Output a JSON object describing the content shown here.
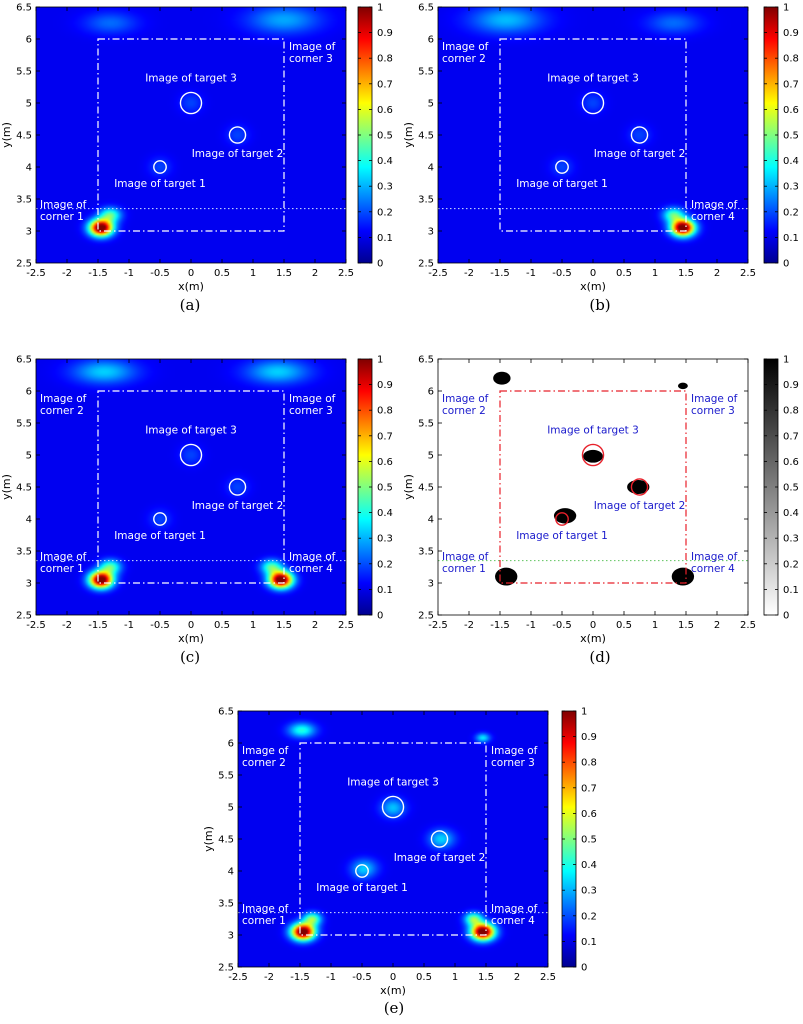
{
  "figure": {
    "panel_labels": [
      "(a)",
      "(b)",
      "(c)",
      "(d)",
      "(e)"
    ]
  },
  "chart_data": [
    {
      "type": "heatmap",
      "panel": "(a)",
      "colormap": "jet",
      "xlabel": "x(m)",
      "ylabel": "y(m)",
      "xlim": [
        -2.5,
        2.5
      ],
      "ylim": [
        2.5,
        6.5
      ],
      "xticks": [
        -2.5,
        -2,
        -1.5,
        -1,
        -0.5,
        0,
        0.5,
        1,
        1.5,
        2,
        2.5
      ],
      "yticks": [
        2.5,
        3,
        3.5,
        4,
        4.5,
        5,
        5.5,
        6,
        6.5
      ],
      "colorbar": {
        "min": 0,
        "max": 1,
        "ticks": [
          0,
          0.1,
          0.2,
          0.3,
          0.4,
          0.5,
          0.6,
          0.7,
          0.8,
          0.9,
          1
        ]
      },
      "room_rect": {
        "x": [
          -1.5,
          1.5
        ],
        "y": [
          3,
          6
        ]
      },
      "threshold_line_y": 3.35,
      "targets": [
        {
          "label": "Image of target 1",
          "x": -0.5,
          "y": 4.0,
          "r": 0.1
        },
        {
          "label": "Image of target 2",
          "x": 0.75,
          "y": 4.5,
          "r": 0.13
        },
        {
          "label": "Image of target 3",
          "x": 0.0,
          "y": 5.0,
          "r": 0.17
        }
      ],
      "corners": [
        {
          "label_line1": "Image of",
          "label_line2": "corner 1",
          "x": -1.5,
          "y": 3.2
        },
        {
          "label_line1": "Image of",
          "label_line2": "corner 3",
          "x": 1.5,
          "y": 5.8
        }
      ],
      "hotspots": [
        {
          "x": -1.45,
          "y": 3.05,
          "intensity": 1.0,
          "sx": 0.13,
          "sy": 0.09
        },
        {
          "x": -1.3,
          "y": 3.25,
          "intensity": 0.35,
          "sx": 0.12,
          "sy": 0.08
        },
        {
          "x": 1.5,
          "y": 6.3,
          "intensity": 0.18,
          "sx": 0.4,
          "sy": 0.15
        },
        {
          "x": -1.3,
          "y": 6.25,
          "intensity": 0.12,
          "sx": 0.3,
          "sy": 0.12
        }
      ]
    },
    {
      "type": "heatmap",
      "panel": "(b)",
      "colormap": "jet",
      "xlabel": "x(m)",
      "ylabel": "y(m)",
      "xlim": [
        -2.5,
        2.5
      ],
      "ylim": [
        2.5,
        6.5
      ],
      "xticks": [
        -2.5,
        -2,
        -1.5,
        -1,
        -0.5,
        0,
        0.5,
        1,
        1.5,
        2,
        2.5
      ],
      "yticks": [
        2.5,
        3,
        3.5,
        4,
        4.5,
        5,
        5.5,
        6,
        6.5
      ],
      "colorbar": {
        "min": 0,
        "max": 1,
        "ticks": [
          0,
          0.1,
          0.2,
          0.3,
          0.4,
          0.5,
          0.6,
          0.7,
          0.8,
          0.9,
          1
        ]
      },
      "room_rect": {
        "x": [
          -1.5,
          1.5
        ],
        "y": [
          3,
          6
        ]
      },
      "threshold_line_y": 3.35,
      "targets": [
        {
          "label": "Image of target 1",
          "x": -0.5,
          "y": 4.0,
          "r": 0.1
        },
        {
          "label": "Image of target 2",
          "x": 0.75,
          "y": 4.5,
          "r": 0.13
        },
        {
          "label": "Image of target 3",
          "x": 0.0,
          "y": 5.0,
          "r": 0.17
        }
      ],
      "corners": [
        {
          "label_line1": "Image of",
          "label_line2": "corner 2",
          "x": -1.5,
          "y": 5.8
        },
        {
          "label_line1": "Image of",
          "label_line2": "corner 4",
          "x": 1.5,
          "y": 3.2
        }
      ],
      "hotspots": [
        {
          "x": 1.45,
          "y": 3.05,
          "intensity": 1.0,
          "sx": 0.13,
          "sy": 0.09
        },
        {
          "x": 1.3,
          "y": 3.25,
          "intensity": 0.35,
          "sx": 0.12,
          "sy": 0.08
        },
        {
          "x": -1.4,
          "y": 6.3,
          "intensity": 0.2,
          "sx": 0.4,
          "sy": 0.15
        },
        {
          "x": 1.3,
          "y": 6.25,
          "intensity": 0.12,
          "sx": 0.3,
          "sy": 0.12
        }
      ]
    },
    {
      "type": "heatmap",
      "panel": "(c)",
      "colormap": "jet",
      "xlabel": "x(m)",
      "ylabel": "y(m)",
      "xlim": [
        -2.5,
        2.5
      ],
      "ylim": [
        2.5,
        6.5
      ],
      "xticks": [
        -2.5,
        -2,
        -1.5,
        -1,
        -0.5,
        0,
        0.5,
        1,
        1.5,
        2,
        2.5
      ],
      "yticks": [
        2.5,
        3,
        3.5,
        4,
        4.5,
        5,
        5.5,
        6,
        6.5
      ],
      "colorbar": {
        "min": 0,
        "max": 1,
        "ticks": [
          0,
          0.1,
          0.2,
          0.3,
          0.4,
          0.5,
          0.6,
          0.7,
          0.8,
          0.9,
          1
        ]
      },
      "room_rect": {
        "x": [
          -1.5,
          1.5
        ],
        "y": [
          3,
          6
        ]
      },
      "threshold_line_y": 3.35,
      "targets": [
        {
          "label": "Image of target 1",
          "x": -0.5,
          "y": 4.0,
          "r": 0.1
        },
        {
          "label": "Image of target 2",
          "x": 0.75,
          "y": 4.5,
          "r": 0.13
        },
        {
          "label": "Image of target 3",
          "x": 0.0,
          "y": 5.0,
          "r": 0.17
        }
      ],
      "corners": [
        {
          "label_line1": "Image of",
          "label_line2": "corner 2",
          "x": -1.5,
          "y": 5.8
        },
        {
          "label_line1": "Image of",
          "label_line2": "corner 3",
          "x": 1.5,
          "y": 5.8
        },
        {
          "label_line1": "Image of",
          "label_line2": "corner 1",
          "x": -1.5,
          "y": 3.2
        },
        {
          "label_line1": "Image of",
          "label_line2": "corner 4",
          "x": 1.5,
          "y": 3.2
        }
      ],
      "hotspots": [
        {
          "x": -1.45,
          "y": 3.05,
          "intensity": 1.0,
          "sx": 0.13,
          "sy": 0.09
        },
        {
          "x": 1.45,
          "y": 3.05,
          "intensity": 1.0,
          "sx": 0.13,
          "sy": 0.09
        },
        {
          "x": -1.3,
          "y": 3.25,
          "intensity": 0.35,
          "sx": 0.12,
          "sy": 0.08
        },
        {
          "x": 1.3,
          "y": 3.25,
          "intensity": 0.35,
          "sx": 0.12,
          "sy": 0.08
        },
        {
          "x": -1.4,
          "y": 6.3,
          "intensity": 0.22,
          "sx": 0.35,
          "sy": 0.13
        },
        {
          "x": 1.4,
          "y": 6.3,
          "intensity": 0.22,
          "sx": 0.35,
          "sy": 0.13
        }
      ]
    },
    {
      "type": "heatmap",
      "panel": "(d)",
      "colormap": "gray",
      "xlabel": "x(m)",
      "ylabel": "y(m)",
      "xlim": [
        -2.5,
        2.5
      ],
      "ylim": [
        2.5,
        6.5
      ],
      "xticks": [
        -2.5,
        -2,
        -1.5,
        -1,
        -0.5,
        0,
        0.5,
        1,
        1.5,
        2,
        2.5
      ],
      "yticks": [
        2.5,
        3,
        3.5,
        4,
        4.5,
        5,
        5.5,
        6,
        6.5
      ],
      "colorbar": {
        "min": 0,
        "max": 1,
        "ticks": [
          0,
          0.1,
          0.2,
          0.3,
          0.4,
          0.5,
          0.6,
          0.7,
          0.8,
          0.9,
          1
        ]
      },
      "room_rect": {
        "x": [
          -1.5,
          1.5
        ],
        "y": [
          3,
          6
        ]
      },
      "threshold_line_y": 3.35,
      "targets": [
        {
          "label": "Image of target 1",
          "x": -0.5,
          "y": 4.0,
          "r": 0.1
        },
        {
          "label": "Image of target 2",
          "x": 0.75,
          "y": 4.5,
          "r": 0.13
        },
        {
          "label": "Image of target 3",
          "x": 0.0,
          "y": 5.0,
          "r": 0.17
        }
      ],
      "corners": [
        {
          "label_line1": "Image of",
          "label_line2": "corner 2",
          "x": -1.5,
          "y": 5.8
        },
        {
          "label_line1": "Image of",
          "label_line2": "corner 3",
          "x": 1.5,
          "y": 5.8
        },
        {
          "label_line1": "Image of",
          "label_line2": "corner 1",
          "x": -1.5,
          "y": 3.2
        },
        {
          "label_line1": "Image of",
          "label_line2": "corner 4",
          "x": 1.5,
          "y": 3.2
        }
      ],
      "blobs": [
        {
          "x": -1.4,
          "y": 3.1,
          "rx": 0.18,
          "ry": 0.14
        },
        {
          "x": 1.45,
          "y": 3.1,
          "rx": 0.18,
          "ry": 0.14
        },
        {
          "x": -1.47,
          "y": 6.2,
          "rx": 0.14,
          "ry": 0.1
        },
        {
          "x": 1.45,
          "y": 6.08,
          "rx": 0.08,
          "ry": 0.05
        },
        {
          "x": -0.45,
          "y": 4.05,
          "rx": 0.18,
          "ry": 0.12
        },
        {
          "x": 0.0,
          "y": 4.98,
          "rx": 0.16,
          "ry": 0.1
        },
        {
          "x": 0.73,
          "y": 4.5,
          "rx": 0.18,
          "ry": 0.11
        }
      ]
    },
    {
      "type": "heatmap",
      "panel": "(e)",
      "colormap": "jet",
      "xlabel": "x(m)",
      "ylabel": "y(m)",
      "xlim": [
        -2.5,
        2.5
      ],
      "ylim": [
        2.5,
        6.5
      ],
      "xticks": [
        -2.5,
        -2,
        -1.5,
        -1,
        -0.5,
        0,
        0.5,
        1,
        1.5,
        2,
        2.5
      ],
      "yticks": [
        2.5,
        3,
        3.5,
        4,
        4.5,
        5,
        5.5,
        6,
        6.5
      ],
      "colorbar": {
        "min": 0,
        "max": 1,
        "ticks": [
          0,
          0.1,
          0.2,
          0.3,
          0.4,
          0.5,
          0.6,
          0.7,
          0.8,
          0.9,
          1
        ]
      },
      "room_rect": {
        "x": [
          -1.5,
          1.5
        ],
        "y": [
          3,
          6
        ]
      },
      "threshold_line_y": 3.35,
      "targets": [
        {
          "label": "Image of target 1",
          "x": -0.5,
          "y": 4.0,
          "r": 0.1
        },
        {
          "label": "Image of target 2",
          "x": 0.75,
          "y": 4.5,
          "r": 0.13
        },
        {
          "label": "Image of target 3",
          "x": 0.0,
          "y": 5.0,
          "r": 0.17
        }
      ],
      "corners": [
        {
          "label_line1": "Image of",
          "label_line2": "corner 2",
          "x": -1.5,
          "y": 5.8
        },
        {
          "label_line1": "Image of",
          "label_line2": "corner 3",
          "x": 1.5,
          "y": 5.8
        },
        {
          "label_line1": "Image of",
          "label_line2": "corner 1",
          "x": -1.5,
          "y": 3.2
        },
        {
          "label_line1": "Image of",
          "label_line2": "corner 4",
          "x": 1.5,
          "y": 3.2
        }
      ],
      "hotspots": [
        {
          "x": -1.45,
          "y": 3.05,
          "intensity": 1.0,
          "sx": 0.13,
          "sy": 0.09
        },
        {
          "x": 1.45,
          "y": 3.05,
          "intensity": 1.0,
          "sx": 0.13,
          "sy": 0.09
        },
        {
          "x": -1.3,
          "y": 3.25,
          "intensity": 0.4,
          "sx": 0.1,
          "sy": 0.07
        },
        {
          "x": 1.3,
          "y": 3.25,
          "intensity": 0.4,
          "sx": 0.1,
          "sy": 0.07
        },
        {
          "x": -1.47,
          "y": 6.2,
          "intensity": 0.3,
          "sx": 0.15,
          "sy": 0.08
        },
        {
          "x": 1.45,
          "y": 6.08,
          "intensity": 0.25,
          "sx": 0.08,
          "sy": 0.05
        },
        {
          "x": -0.45,
          "y": 4.05,
          "intensity": 0.15,
          "sx": 0.15,
          "sy": 0.1
        },
        {
          "x": 0.8,
          "y": 4.5,
          "intensity": 0.15,
          "sx": 0.15,
          "sy": 0.1
        },
        {
          "x": 0.0,
          "y": 4.98,
          "intensity": 0.13,
          "sx": 0.14,
          "sy": 0.1
        }
      ]
    }
  ]
}
